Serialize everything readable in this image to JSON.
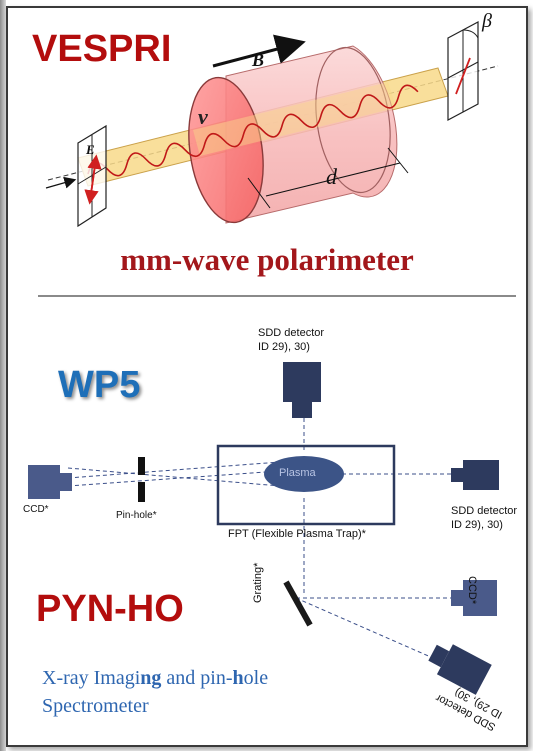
{
  "vespri": {
    "title": "VESPRI",
    "label_B": "B",
    "label_beta": "β",
    "label_nu": "ν",
    "label_E": "E",
    "label_d": "d",
    "subtitle": "mm-wave polarimeter"
  },
  "wp5": {
    "title": "WP5",
    "sdd_top_line1": "SDD detector",
    "sdd_top_line2": "ID 29), 30)",
    "ccd_left": "CCD*",
    "pinhole": "Pin-hole*",
    "plasma": "Plasma",
    "fpt": "FPT (Flexible Plasma Trap)*",
    "sdd_right_line1": "SDD detector",
    "sdd_right_line2": "ID 29), 30)"
  },
  "pynho": {
    "title": "PYN-HO",
    "grating": "Grating*",
    "ccd_right": "CCD*",
    "sdd_rot_line1": "SDD detector",
    "sdd_rot_line2": "ID 29), 30)",
    "desc_line1_a": "X-ray Imagi",
    "desc_line1_b": "ng",
    "desc_line1_c": " and pin-",
    "desc_line1_d": "h",
    "desc_line1_e": "ole",
    "desc_line2": "Spectrometer"
  },
  "colors": {
    "red_title": "#b30d0d",
    "blue_title": "#1e6fb8",
    "detector": "#2d3a5e",
    "plasma": "#3c5487",
    "cylinder": "#f6b8b8"
  }
}
